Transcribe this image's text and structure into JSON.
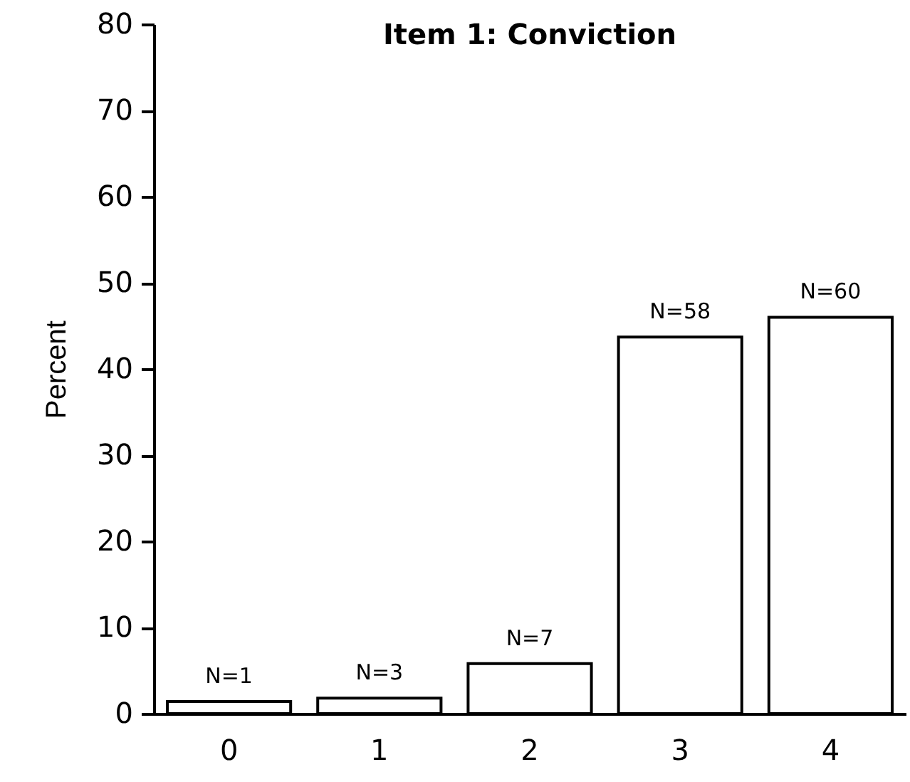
{
  "chart_data": {
    "type": "bar",
    "title": "Item 1: Conviction",
    "ylabel": "Percent",
    "categories": [
      "0",
      "1",
      "2",
      "3",
      "4"
    ],
    "values": [
      1.4,
      1.8,
      5.8,
      43.7,
      46.0
    ],
    "annotations": [
      {
        "text": "N=1",
        "x": "0",
        "y": 1.4
      },
      {
        "text": "N=3",
        "x": "1",
        "y": 1.8
      },
      {
        "text": "N=7",
        "x": "2",
        "y": 5.8
      },
      {
        "text": "N=58",
        "x": "3",
        "y": 43.7
      },
      {
        "text": "N=60",
        "x": "4",
        "y": 46.0
      }
    ],
    "color": "#ffffff",
    "ylim": [
      0,
      80
    ],
    "yticks": [
      0,
      10,
      20,
      30,
      40,
      50,
      60,
      70,
      80
    ],
    "grid": false
  }
}
